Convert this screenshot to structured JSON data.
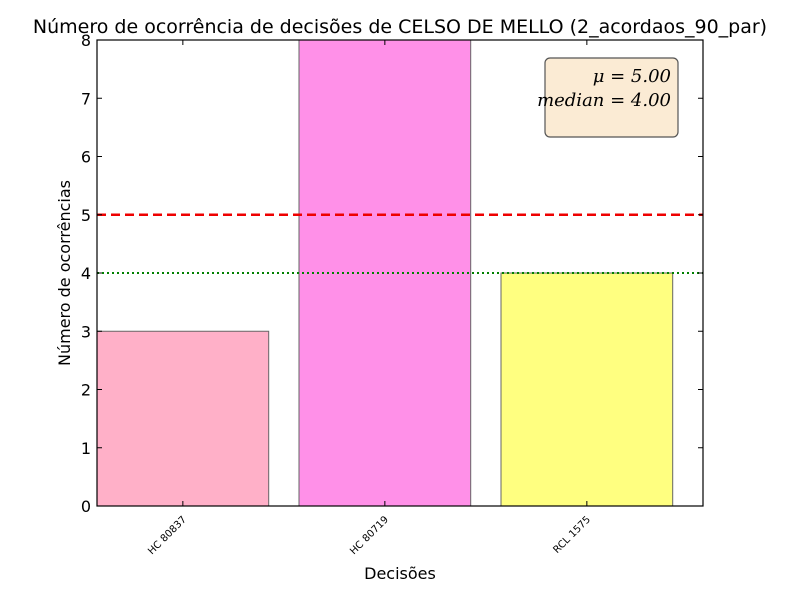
{
  "chart_data": {
    "type": "bar",
    "title": "Número de ocorrência de decisões de CELSO DE MELLO (2_acordaos_90_par)",
    "xlabel": "Decisões",
    "ylabel": "Número de ocorrências",
    "categories": [
      "HC 80837",
      "HC 80719",
      "RCL 1575"
    ],
    "values": [
      3,
      8,
      4
    ],
    "bar_colors": [
      "#ffb0c8",
      "#ff90e8",
      "#ffff80"
    ],
    "ylim": [
      0,
      8
    ],
    "yticks": [
      "0",
      "1",
      "2",
      "3",
      "4",
      "5",
      "6",
      "7",
      "8"
    ],
    "mean": 5,
    "median": 4,
    "mean_line_color": "#ee0000",
    "median_line_color": "#008000",
    "stats_box": {
      "mean_text": "μ = 5.00",
      "median_text": "median = 4.00",
      "placement": "top-right"
    },
    "legend": "none",
    "grid": false
  }
}
